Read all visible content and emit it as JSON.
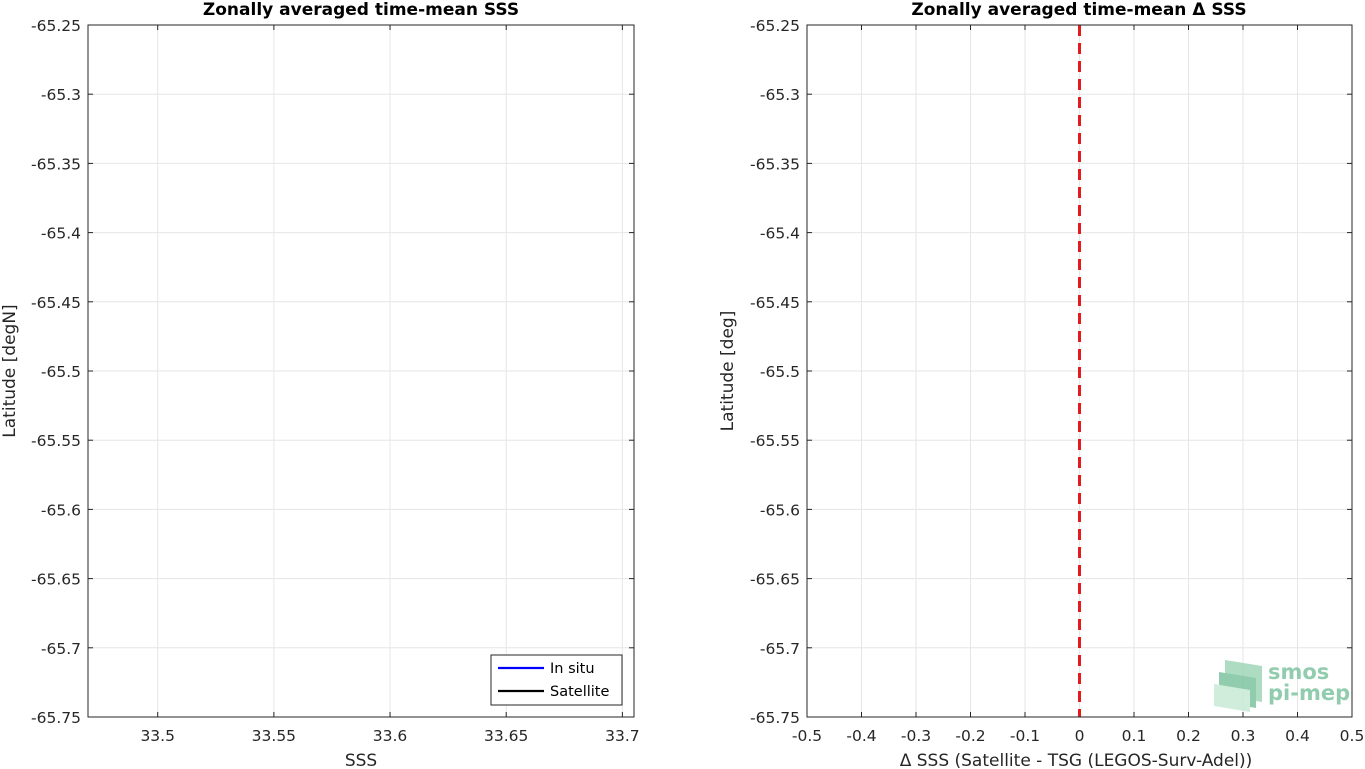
{
  "chart_data": [
    {
      "type": "line",
      "title": "Zonally averaged time-mean SSS",
      "xlabel": "SSS",
      "ylabel": "Latitude [degN]",
      "xlim": [
        33.47,
        33.705
      ],
      "ylim": [
        -65.75,
        -65.25
      ],
      "y_reversed": true,
      "xticks": [
        33.5,
        33.55,
        33.6,
        33.65,
        33.7
      ],
      "xtick_labels": [
        "33.5",
        "33.55",
        "33.6",
        "33.65",
        "33.7"
      ],
      "yticks": [
        -65.25,
        -65.3,
        -65.35,
        -65.4,
        -65.45,
        -65.5,
        -65.55,
        -65.6,
        -65.65,
        -65.7,
        -65.75
      ],
      "ytick_labels": [
        "-65.25",
        "-65.3",
        "-65.35",
        "-65.4",
        "-65.45",
        "-65.5",
        "-65.55",
        "-65.6",
        "-65.65",
        "-65.7",
        "-65.75"
      ],
      "grid": true,
      "legend_location": "bottom-right",
      "series": [
        {
          "name": "In situ",
          "color": "#0000ff",
          "values": []
        },
        {
          "name": "Satellite",
          "color": "#000000",
          "values": []
        }
      ]
    },
    {
      "type": "line",
      "title": "Zonally averaged time-mean Δ SSS",
      "xlabel": "Δ SSS (Satellite - TSG (LEGOS-Surv-Adel))",
      "ylabel": "Latitude [deg]",
      "xlim": [
        -0.5,
        0.5
      ],
      "ylim": [
        -65.75,
        -65.25
      ],
      "y_reversed": true,
      "xticks": [
        -0.5,
        -0.4,
        -0.3,
        -0.2,
        -0.1,
        0,
        0.1,
        0.2,
        0.3,
        0.4,
        0.5
      ],
      "xtick_labels": [
        "-0.5",
        "-0.4",
        "-0.3",
        "-0.2",
        "-0.1",
        "0",
        "0.1",
        "0.2",
        "0.3",
        "0.4",
        "0.5"
      ],
      "yticks": [
        -65.25,
        -65.3,
        -65.35,
        -65.4,
        -65.45,
        -65.5,
        -65.55,
        -65.6,
        -65.65,
        -65.7,
        -65.75
      ],
      "ytick_labels": [
        "-65.25",
        "-65.3",
        "-65.35",
        "-65.4",
        "-65.45",
        "-65.5",
        "-65.55",
        "-65.6",
        "-65.65",
        "-65.7",
        "-65.75"
      ],
      "grid": true,
      "reference_line": {
        "x": 0,
        "color": "#e41a1c",
        "style": "dashed"
      },
      "series": []
    }
  ],
  "logo": {
    "line1": "smos",
    "line2": "pi-mep",
    "color": "#7fc4a0"
  }
}
